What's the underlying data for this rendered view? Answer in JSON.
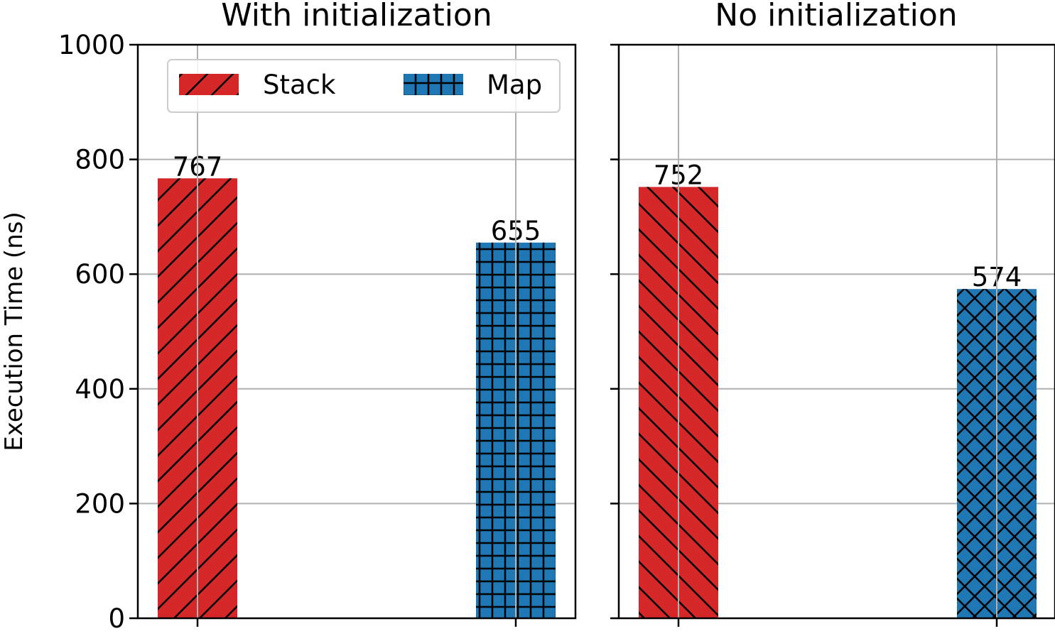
{
  "colors": {
    "stack": "#d62728",
    "map": "#1f77b4",
    "grid": "#b0b0b0"
  },
  "ylabel": "Execution Time (ns)",
  "legend": {
    "placement": "upper-right",
    "items": [
      {
        "label": "Stack",
        "color": "#d62728",
        "hatch": "/"
      },
      {
        "label": "Map",
        "color": "#1f77b4",
        "hatch": "+"
      }
    ]
  },
  "panels": [
    {
      "title": "With initialization"
    },
    {
      "title": "No initialization"
    }
  ],
  "chart_data": [
    {
      "type": "bar",
      "title": "With initialization",
      "ylabel": "Execution Time (ns)",
      "ylim": [
        0,
        1000
      ],
      "yticks": [
        "0",
        "200",
        "400",
        "600",
        "800",
        "1000"
      ],
      "grid": true,
      "legend_placement": "upper-right",
      "bars": [
        {
          "series": "Stack",
          "value": 767,
          "label": "767",
          "color": "#d62728",
          "hatch": "/"
        },
        {
          "series": "Map",
          "value": 655,
          "label": "655",
          "color": "#1f77b4",
          "hatch": "+"
        }
      ]
    },
    {
      "type": "bar",
      "title": "No initialization",
      "ylim": [
        0,
        1000
      ],
      "grid": true,
      "bars": [
        {
          "series": "Stack",
          "value": 752,
          "label": "752",
          "color": "#d62728",
          "hatch": "\\"
        },
        {
          "series": "Map",
          "value": 574,
          "label": "574",
          "color": "#1f77b4",
          "hatch": "x"
        }
      ]
    }
  ]
}
